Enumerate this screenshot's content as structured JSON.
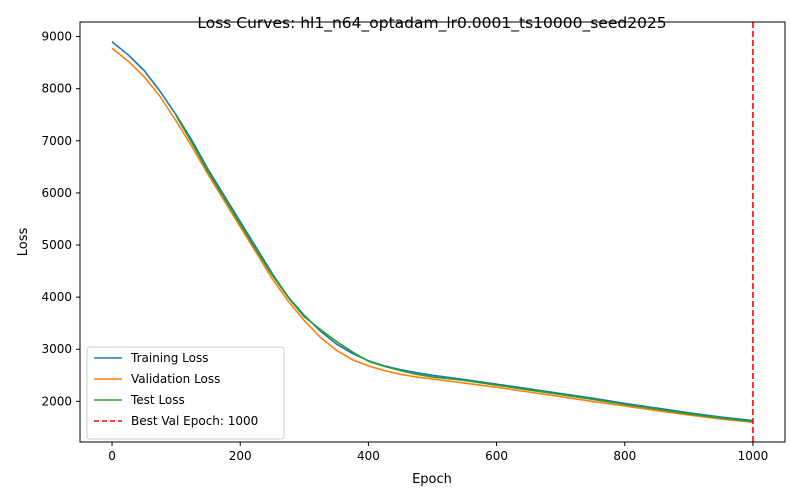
{
  "chart_data": {
    "type": "line",
    "title": "Loss Curves: hl1_n64_optadam_lr0.0001_ts10000_seed2025",
    "xlabel": "Epoch",
    "ylabel": "Loss",
    "xlim": [
      -50,
      1050
    ],
    "ylim": [
      1220,
      9280
    ],
    "xticks": [
      0,
      200,
      400,
      600,
      800,
      1000
    ],
    "yticks": [
      2000,
      3000,
      4000,
      5000,
      6000,
      7000,
      8000,
      9000
    ],
    "grid": false,
    "legend_position": "lower-left",
    "series": [
      {
        "name": "Training Loss",
        "color": "#1f77b4",
        "x": [
          0,
          25,
          50,
          75,
          100,
          125,
          150,
          175,
          200,
          225,
          250,
          275,
          300,
          325,
          350,
          375,
          400,
          425,
          450,
          475,
          500,
          550,
          600,
          650,
          700,
          750,
          800,
          850,
          900,
          950,
          1000
        ],
        "y": [
          8900,
          8650,
          8350,
          7950,
          7500,
          7000,
          6450,
          5950,
          5450,
          4950,
          4450,
          4000,
          3650,
          3350,
          3100,
          2920,
          2780,
          2680,
          2610,
          2550,
          2500,
          2420,
          2330,
          2240,
          2150,
          2060,
          1960,
          1870,
          1780,
          1700,
          1630
        ]
      },
      {
        "name": "Validation Loss",
        "color": "#ff7f0e",
        "x": [
          0,
          25,
          50,
          75,
          100,
          125,
          150,
          175,
          200,
          225,
          250,
          275,
          300,
          325,
          350,
          375,
          400,
          425,
          450,
          475,
          500,
          550,
          600,
          650,
          700,
          750,
          800,
          850,
          900,
          950,
          1000
        ],
        "y": [
          8780,
          8530,
          8230,
          7850,
          7380,
          6880,
          6350,
          5850,
          5350,
          4850,
          4350,
          3920,
          3550,
          3230,
          2980,
          2800,
          2680,
          2590,
          2520,
          2470,
          2430,
          2350,
          2270,
          2180,
          2090,
          2000,
          1910,
          1820,
          1740,
          1660,
          1600
        ]
      },
      {
        "name": "Test Loss",
        "color": "#2ca02c",
        "x": [
          100,
          125,
          150,
          175,
          200,
          225,
          250,
          275,
          300,
          325,
          350,
          375,
          400,
          425,
          450,
          475,
          500,
          550,
          600,
          650,
          700,
          750,
          800,
          850,
          900,
          950,
          1000
        ],
        "y": [
          7480,
          6950,
          6400,
          5900,
          5400,
          4900,
          4420,
          3990,
          3620,
          3380,
          3150,
          2950,
          2770,
          2670,
          2590,
          2520,
          2470,
          2400,
          2310,
          2220,
          2130,
          2040,
          1940,
          1850,
          1760,
          1680,
          1610
        ]
      }
    ],
    "vline": {
      "name": "Best Val Epoch: 1000",
      "x": 1000,
      "color": "#ff0000",
      "style": "dashed"
    }
  }
}
